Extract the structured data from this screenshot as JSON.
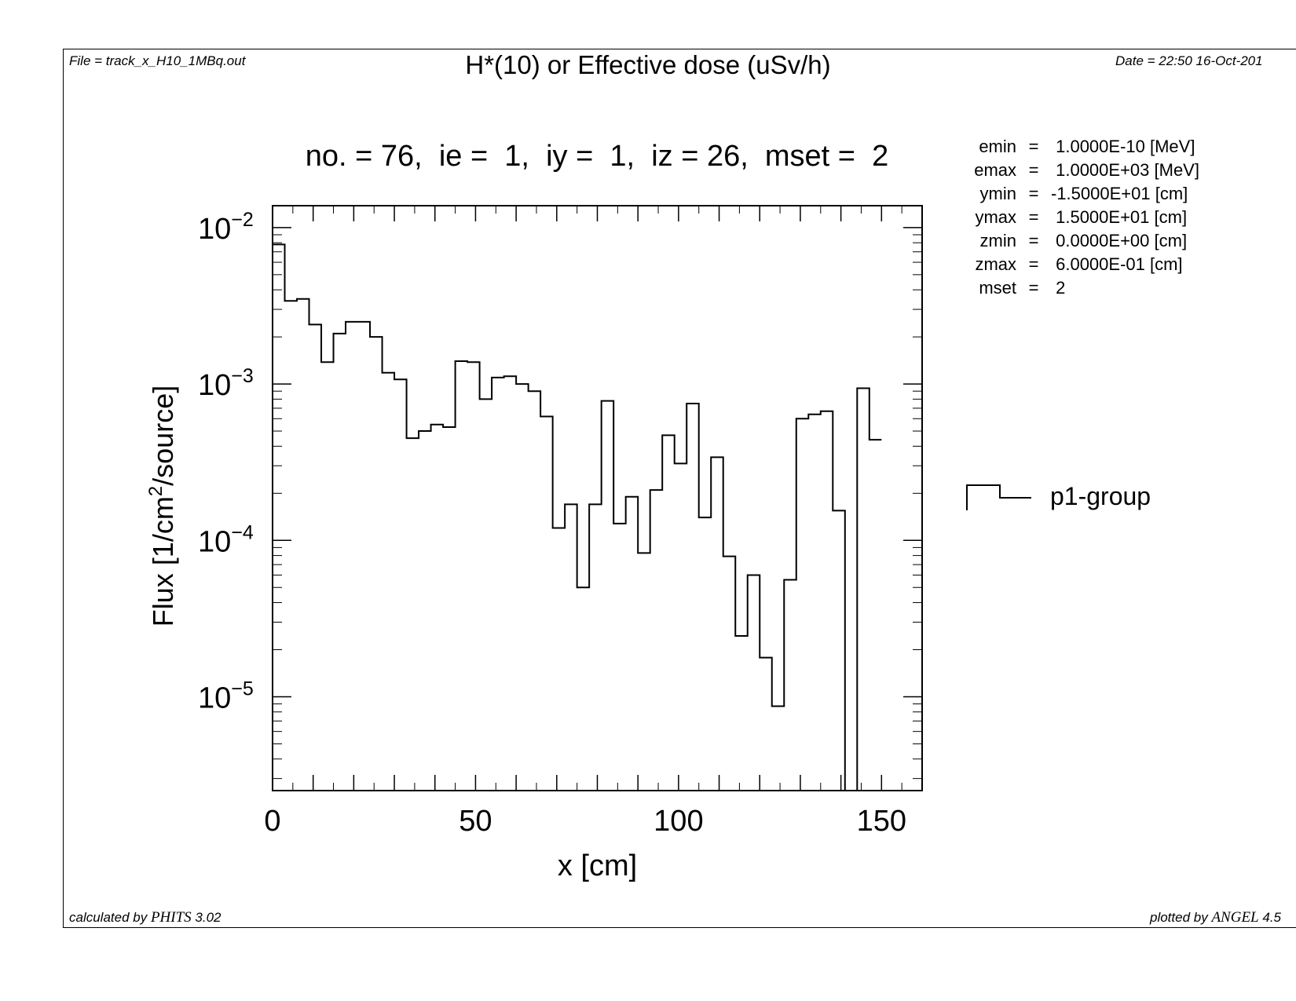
{
  "header": {
    "file": "File = track_x_H10_1MBq.out",
    "title": "H*(10) or Effective dose (uSv/h)",
    "date": "Date = 22:50 16-Oct-201"
  },
  "footer": {
    "calc_prefix": "calculated by ",
    "calc_code": "PHITS",
    "calc_version": " 3.02",
    "plot_prefix": "plotted by ",
    "plot_code": "ANGEL",
    "plot_version": " 4.5"
  },
  "subtitle": "no. = 76,  ie =  1,  iy =  1,  iz = 26,  mset =  2",
  "params": [
    {
      "name": "emin",
      "value": " 1.0000E-10 [MeV]"
    },
    {
      "name": "emax",
      "value": " 1.0000E+03 [MeV]"
    },
    {
      "name": "ymin",
      "value": "-1.5000E+01 [cm]"
    },
    {
      "name": "ymax",
      "value": " 1.5000E+01 [cm]"
    },
    {
      "name": "zmin",
      "value": " 0.0000E+00 [cm]"
    },
    {
      "name": "zmax",
      "value": " 6.0000E-01 [cm]"
    },
    {
      "name": "mset",
      "value": " 2"
    }
  ],
  "params_eq": "=",
  "chart_data": {
    "type": "line",
    "step": true,
    "xlabel": "x [cm]",
    "ylabel": "Flux [1/cm2/source]",
    "ylabel_parts": [
      "Flux [1/cm",
      "2",
      "/source]"
    ],
    "xlim": [
      0,
      160
    ],
    "ylim_log10": [
      -5.6,
      -1.86
    ],
    "yscale": "log",
    "x_ticks": [
      0,
      50,
      100,
      150
    ],
    "x_tick_labels": [
      "0",
      "50",
      "100",
      "150"
    ],
    "y_ticks_exp": [
      -2,
      -3,
      -4,
      -5
    ],
    "y_tick_labels": [
      {
        "base": "10",
        "exp": "−2"
      },
      {
        "base": "10",
        "exp": "−3"
      },
      {
        "base": "10",
        "exp": "−4"
      },
      {
        "base": "10",
        "exp": "−5"
      }
    ],
    "legend_position": "right",
    "series": [
      {
        "name": "p1-group",
        "bin_width": 3,
        "x_start": 0,
        "values": [
          0.0078,
          0.0034,
          0.0035,
          0.0024,
          0.00138,
          0.0021,
          0.0025,
          0.0025,
          0.002,
          0.00118,
          0.00107,
          0.00045,
          0.0005,
          0.00055,
          0.00053,
          0.0014,
          0.00138,
          0.0008,
          0.0011,
          0.00112,
          0.001,
          0.0009,
          0.00062,
          0.00012,
          0.00017,
          5e-05,
          0.00017,
          0.00078,
          0.000128,
          0.00019,
          8.3e-05,
          0.00021,
          0.00047,
          0.00031,
          0.00075,
          0.00014,
          0.00034,
          7.9e-05,
          2.45e-05,
          6e-05,
          1.78e-05,
          8.7e-06,
          5.6e-05,
          0.0006,
          0.00064,
          0.00067,
          0.000155,
          0,
          0.00094,
          0.00044
        ]
      }
    ]
  }
}
